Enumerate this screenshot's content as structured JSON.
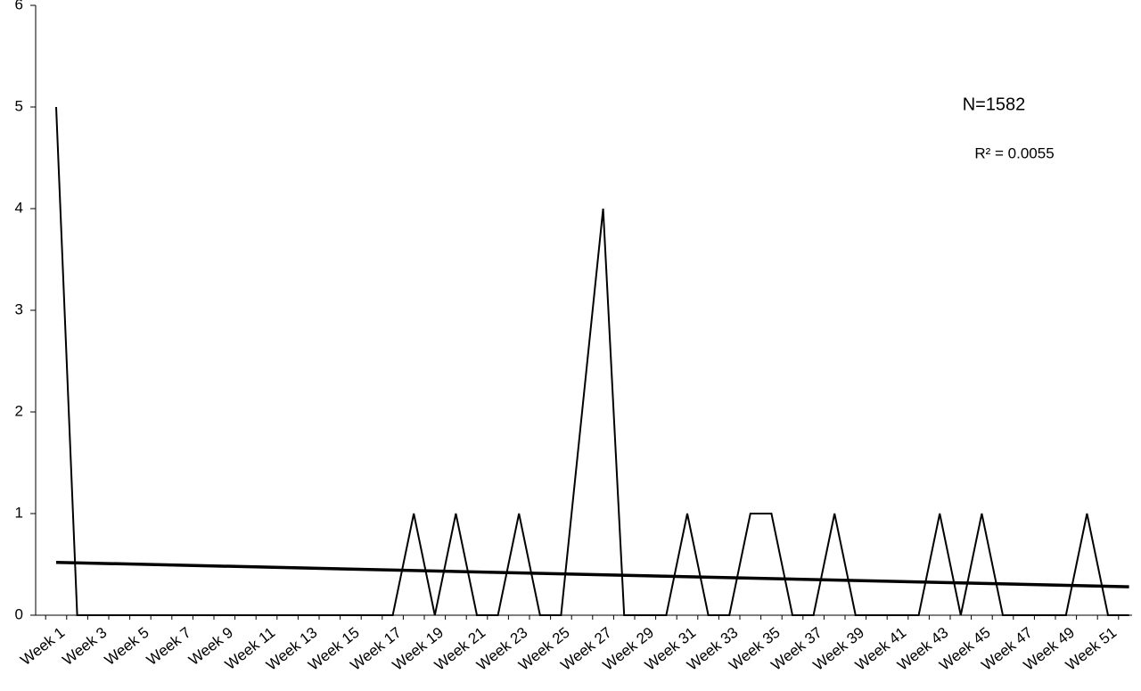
{
  "chart_data": {
    "type": "line",
    "categories": [
      "Week 1",
      null,
      "Week 3",
      null,
      "Week 5",
      null,
      "Week 7",
      null,
      "Week 9",
      null,
      "Week 11",
      null,
      "Week 13",
      null,
      "Week 15",
      null,
      "Week 17",
      null,
      "Week 19",
      null,
      "Week 21",
      null,
      "Week 23",
      null,
      "Week 25",
      null,
      "Week 27",
      null,
      "Week 29",
      null,
      "Week 31",
      null,
      "Week 33",
      null,
      "Week 35",
      null,
      "Week 37",
      null,
      "Week 39",
      null,
      "Week 41",
      null,
      "Week 43",
      null,
      "Week 45",
      null,
      "Week 47",
      null,
      "Week 49",
      null,
      "Week 51",
      null
    ],
    "values": [
      5,
      0,
      0,
      0,
      0,
      0,
      0,
      0,
      0,
      0,
      0,
      0,
      0,
      0,
      0,
      0,
      0,
      1,
      0,
      1,
      0,
      0,
      1,
      0,
      0,
      2,
      4,
      0,
      0,
      0,
      1,
      0,
      0,
      1,
      1,
      0,
      0,
      1,
      0,
      0,
      0,
      0,
      1,
      0,
      1,
      0,
      0,
      0,
      0,
      1,
      0,
      0
    ],
    "color": "#000000",
    "trend": [
      0.52,
      0.28
    ],
    "ylim": [
      0,
      6
    ],
    "yticks": [
      0,
      1,
      2,
      3,
      4,
      5,
      6
    ],
    "annotations": [
      "N=1582",
      "R² = 0.0055"
    ]
  }
}
